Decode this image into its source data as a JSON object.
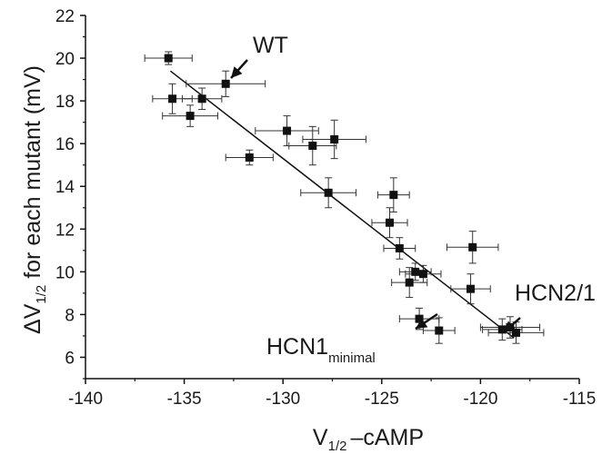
{
  "chart_data": {
    "type": "scatter",
    "xlabel": {
      "main": "V",
      "sub": "1/2",
      "rest": "–cAMP"
    },
    "ylabel": {
      "pre": "ΔV",
      "sub": "1/2",
      "rest": " for each mutant (mV)"
    },
    "xlim": [
      -140,
      -115
    ],
    "ylim": [
      5,
      22
    ],
    "x_ticks": [
      -140,
      -135,
      -130,
      -125,
      -120,
      -115
    ],
    "y_ticks": [
      6,
      8,
      10,
      12,
      14,
      16,
      18,
      20,
      22
    ],
    "grid": false,
    "points": [
      {
        "x": -135.8,
        "y": 20.0,
        "xerr": 1.2,
        "yerr": 0.3
      },
      {
        "x": -132.9,
        "y": 18.8,
        "xerr": 2.0,
        "yerr": 0.6
      },
      {
        "x": -135.6,
        "y": 18.1,
        "xerr": 1.0,
        "yerr": 0.7
      },
      {
        "x": -134.1,
        "y": 18.1,
        "xerr": 1.0,
        "yerr": 0.5
      },
      {
        "x": -134.7,
        "y": 17.3,
        "xerr": 1.4,
        "yerr": 0.5
      },
      {
        "x": -129.8,
        "y": 16.6,
        "xerr": 1.6,
        "yerr": 0.7
      },
      {
        "x": -128.5,
        "y": 15.9,
        "xerr": 1.2,
        "yerr": 0.9
      },
      {
        "x": -127.4,
        "y": 16.2,
        "xerr": 1.6,
        "yerr": 0.9
      },
      {
        "x": -131.7,
        "y": 15.35,
        "xerr": 1.2,
        "yerr": 0.35
      },
      {
        "x": -127.7,
        "y": 13.7,
        "xerr": 1.4,
        "yerr": 0.7
      },
      {
        "x": -124.4,
        "y": 13.6,
        "xerr": 0.8,
        "yerr": 0.8
      },
      {
        "x": -124.6,
        "y": 12.3,
        "xerr": 0.9,
        "yerr": 0.7
      },
      {
        "x": -124.1,
        "y": 11.1,
        "xerr": 0.8,
        "yerr": 0.5
      },
      {
        "x": -120.4,
        "y": 11.15,
        "xerr": 1.3,
        "yerr": 0.75
      },
      {
        "x": -123.3,
        "y": 10.0,
        "xerr": 0.8,
        "yerr": 0.4
      },
      {
        "x": -122.9,
        "y": 9.9,
        "xerr": 0.9,
        "yerr": 0.4
      },
      {
        "x": -123.6,
        "y": 9.5,
        "xerr": 0.9,
        "yerr": 0.7
      },
      {
        "x": -120.5,
        "y": 9.2,
        "xerr": 1.0,
        "yerr": 0.7
      },
      {
        "x": -123.1,
        "y": 7.8,
        "xerr": 1.0,
        "yerr": 0.5
      },
      {
        "x": -122.1,
        "y": 7.25,
        "xerr": 0.8,
        "yerr": 0.6
      },
      {
        "x": -118.9,
        "y": 7.3,
        "xerr": 1.0,
        "yerr": 0.5
      },
      {
        "x": -118.5,
        "y": 7.4,
        "xerr": 1.5,
        "yerr": 0.5
      },
      {
        "x": -118.2,
        "y": 7.15,
        "xerr": 1.4,
        "yerr": 0.5
      }
    ],
    "fit_line": {
      "x": [
        -135.7,
        -118.3
      ],
      "y": [
        19.4,
        6.9
      ]
    },
    "annotations": [
      {
        "text": "WT"
      },
      {
        "text": "HCN1",
        "sub": "minimal"
      },
      {
        "text": "HCN2/1"
      }
    ]
  }
}
